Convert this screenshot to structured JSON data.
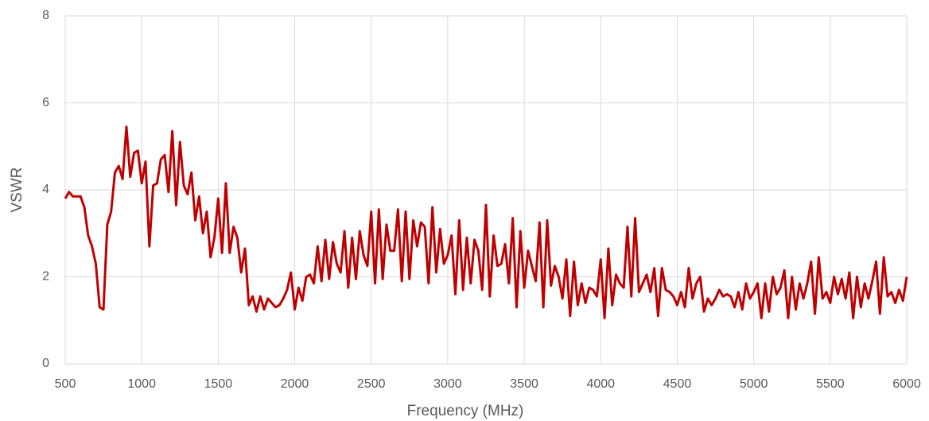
{
  "chart_data": {
    "type": "line",
    "x_label": "Frequency (MHz)",
    "y_label": "VSWR",
    "xlim": [
      500,
      6000
    ],
    "xticks": [
      500,
      1000,
      1500,
      2000,
      2500,
      3000,
      3500,
      4000,
      4500,
      5000,
      5500,
      6000
    ],
    "ylim": [
      0,
      8
    ],
    "yticks": [
      0,
      2,
      4,
      6,
      8
    ],
    "grid": true,
    "x": [
      500,
      525,
      550,
      575,
      600,
      625,
      650,
      675,
      700,
      725,
      750,
      775,
      800,
      825,
      850,
      875,
      900,
      925,
      950,
      975,
      1000,
      1025,
      1050,
      1075,
      1100,
      1125,
      1150,
      1175,
      1200,
      1225,
      1250,
      1275,
      1300,
      1325,
      1350,
      1375,
      1400,
      1425,
      1450,
      1475,
      1500,
      1525,
      1550,
      1575,
      1600,
      1625,
      1650,
      1675,
      1700,
      1725,
      1750,
      1775,
      1800,
      1825,
      1850,
      1875,
      1900,
      1925,
      1950,
      1975,
      2000,
      2025,
      2050,
      2075,
      2100,
      2125,
      2150,
      2175,
      2200,
      2225,
      2250,
      2275,
      2300,
      2325,
      2350,
      2375,
      2400,
      2425,
      2450,
      2475,
      2500,
      2525,
      2550,
      2575,
      2600,
      2625,
      2650,
      2675,
      2700,
      2725,
      2750,
      2775,
      2800,
      2825,
      2850,
      2875,
      2900,
      2925,
      2950,
      2975,
      3000,
      3025,
      3050,
      3075,
      3100,
      3125,
      3150,
      3175,
      3200,
      3225,
      3250,
      3275,
      3300,
      3325,
      3350,
      3375,
      3400,
      3425,
      3450,
      3475,
      3500,
      3525,
      3550,
      3575,
      3600,
      3625,
      3650,
      3675,
      3700,
      3725,
      3750,
      3775,
      3800,
      3825,
      3850,
      3875,
      3900,
      3925,
      3950,
      3975,
      4000,
      4025,
      4050,
      4075,
      4100,
      4125,
      4150,
      4175,
      4200,
      4225,
      4250,
      4275,
      4300,
      4325,
      4350,
      4375,
      4400,
      4425,
      4450,
      4475,
      4500,
      4525,
      4550,
      4575,
      4600,
      4625,
      4650,
      4675,
      4700,
      4725,
      4750,
      4775,
      4800,
      4825,
      4850,
      4875,
      4900,
      4925,
      4950,
      4975,
      5000,
      5025,
      5050,
      5075,
      5100,
      5125,
      5150,
      5175,
      5200,
      5225,
      5250,
      5275,
      5300,
      5325,
      5350,
      5375,
      5400,
      5425,
      5450,
      5475,
      5500,
      5525,
      5550,
      5575,
      5600,
      5625,
      5650,
      5675,
      5700,
      5725,
      5750,
      5775,
      5800,
      5825,
      5850,
      5875,
      5900,
      5925,
      5950,
      5975,
      6000
    ],
    "series": [
      {
        "color": "#c00000",
        "values": [
          3.8,
          3.95,
          3.85,
          3.85,
          3.85,
          3.6,
          2.95,
          2.7,
          2.3,
          1.3,
          1.25,
          3.2,
          3.5,
          4.4,
          4.55,
          4.25,
          5.45,
          4.3,
          4.85,
          4.9,
          4.15,
          4.65,
          2.7,
          4.1,
          4.15,
          4.7,
          4.8,
          3.95,
          5.35,
          3.65,
          5.1,
          4.1,
          3.9,
          4.4,
          3.3,
          3.85,
          3.0,
          3.5,
          2.45,
          2.9,
          3.8,
          2.55,
          4.15,
          2.55,
          3.15,
          2.9,
          2.1,
          2.65,
          1.35,
          1.55,
          1.2,
          1.55,
          1.25,
          1.5,
          1.4,
          1.3,
          1.35,
          1.5,
          1.7,
          2.1,
          1.25,
          1.75,
          1.45,
          2.0,
          2.05,
          1.85,
          2.7,
          1.9,
          2.85,
          1.95,
          2.8,
          2.3,
          2.1,
          3.05,
          1.75,
          2.9,
          1.95,
          3.05,
          2.5,
          2.25,
          3.5,
          1.85,
          3.55,
          1.95,
          3.2,
          2.6,
          2.6,
          3.55,
          1.9,
          3.5,
          1.95,
          3.3,
          2.7,
          3.25,
          3.15,
          1.85,
          3.6,
          2.1,
          3.1,
          2.3,
          2.5,
          2.95,
          1.6,
          3.3,
          1.7,
          2.9,
          1.85,
          2.85,
          2.6,
          1.7,
          3.65,
          1.55,
          2.95,
          2.25,
          2.3,
          2.75,
          1.85,
          3.35,
          1.3,
          3.05,
          1.75,
          2.6,
          2.25,
          1.9,
          3.25,
          1.3,
          3.3,
          1.8,
          2.25,
          2.0,
          1.5,
          2.4,
          1.1,
          2.35,
          1.35,
          1.85,
          1.4,
          1.75,
          1.7,
          1.55,
          2.4,
          1.05,
          2.65,
          1.35,
          2.05,
          1.85,
          1.75,
          3.15,
          1.55,
          3.35,
          1.65,
          1.85,
          2.05,
          1.65,
          2.2,
          1.1,
          2.2,
          1.7,
          1.65,
          1.55,
          1.35,
          1.65,
          1.3,
          2.2,
          1.5,
          1.85,
          2.0,
          1.2,
          1.5,
          1.35,
          1.5,
          1.7,
          1.55,
          1.6,
          1.55,
          1.3,
          1.65,
          1.25,
          1.85,
          1.5,
          1.65,
          1.85,
          1.05,
          1.85,
          1.2,
          2.0,
          1.6,
          1.75,
          2.15,
          1.05,
          2.0,
          1.25,
          1.85,
          1.5,
          1.85,
          2.35,
          1.15,
          2.45,
          1.5,
          1.65,
          1.4,
          2.0,
          1.6,
          1.95,
          1.5,
          2.1,
          1.05,
          2.0,
          1.3,
          1.85,
          1.5,
          1.9,
          2.35,
          1.15,
          2.45,
          1.55,
          1.65,
          1.4,
          1.7,
          1.45,
          2.0
        ]
      }
    ]
  }
}
